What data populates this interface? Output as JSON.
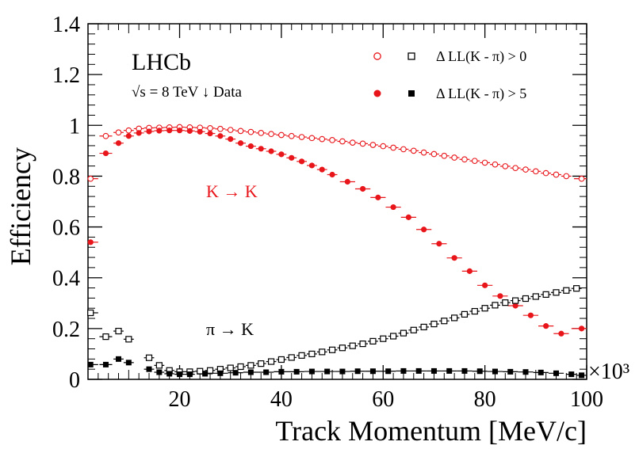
{
  "chart_data": {
    "type": "scatter",
    "ylabel": "Efficiency",
    "xlabel": "Track Momentum [MeV/c]",
    "x_multiplier": "×10³",
    "xlim": [
      2000,
      100000
    ],
    "ylim": [
      0,
      1.4
    ],
    "x_ticks": [
      20000,
      40000,
      60000,
      80000,
      100000
    ],
    "x_tick_labels": [
      "20",
      "40",
      "60",
      "80",
      "100"
    ],
    "y_ticks": [
      0,
      0.2,
      0.4,
      0.6,
      0.8,
      1.0,
      1.2,
      1.4
    ],
    "y_tick_labels": [
      "0",
      "0.2",
      "0.4",
      "0.6",
      "0.8",
      "1",
      "1.2",
      "1.4"
    ],
    "experiment_label": "LHCb",
    "energy_label": "√s = 8 TeV ↓ Data",
    "annotations": [
      {
        "text": "K → K",
        "color": "#e8161b"
      },
      {
        "text": "π → K",
        "color": "#000000"
      }
    ],
    "legend": [
      {
        "label": "Δ LL(K - π) > 0",
        "marker": "open",
        "colors": [
          "#e8161b",
          "#000000"
        ]
      },
      {
        "label": "Δ LL(K - π) > 5",
        "marker": "filled",
        "colors": [
          "#e8161b",
          "#000000"
        ]
      }
    ],
    "series": [
      {
        "name": "K→K, ΔLL(K-π) > 0",
        "color": "#e8161b",
        "marker": "open-circle",
        "x": [
          2500,
          5500,
          8000,
          10000,
          12000,
          14000,
          16000,
          18000,
          20000,
          22000,
          24000,
          26000,
          28000,
          30000,
          32000,
          34000,
          36000,
          38000,
          40000,
          42000,
          44000,
          46000,
          48000,
          50000,
          52000,
          54000,
          56000,
          58000,
          60000,
          62000,
          64000,
          66000,
          68000,
          70000,
          72000,
          74000,
          76000,
          78000,
          80000,
          82000,
          84000,
          86000,
          88000,
          90000,
          92000,
          94000,
          96000,
          99000
        ],
        "y": [
          0.79,
          0.958,
          0.972,
          0.98,
          0.987,
          0.99,
          0.991,
          0.992,
          0.993,
          0.992,
          0.991,
          0.989,
          0.986,
          0.982,
          0.978,
          0.974,
          0.97,
          0.966,
          0.962,
          0.958,
          0.954,
          0.95,
          0.946,
          0.942,
          0.937,
          0.932,
          0.928,
          0.923,
          0.918,
          0.912,
          0.906,
          0.9,
          0.893,
          0.887,
          0.88,
          0.873,
          0.866,
          0.86,
          0.853,
          0.846,
          0.839,
          0.832,
          0.826,
          0.819,
          0.812,
          0.806,
          0.8,
          0.79
        ]
      },
      {
        "name": "K→K, ΔLL(K-π) > 5",
        "color": "#e8161b",
        "marker": "filled-circle",
        "x": [
          2500,
          5500,
          8000,
          10000,
          12000,
          14000,
          16000,
          18000,
          20000,
          22000,
          24000,
          26000,
          28000,
          30000,
          32000,
          34000,
          36000,
          38000,
          40000,
          42000,
          44000,
          46000,
          48000,
          50000,
          53000,
          56000,
          59000,
          62000,
          65000,
          68000,
          71000,
          74000,
          77000,
          80000,
          83000,
          86000,
          89000,
          92000,
          95000,
          99000
        ],
        "y": [
          0.54,
          0.89,
          0.93,
          0.958,
          0.97,
          0.976,
          0.979,
          0.98,
          0.98,
          0.978,
          0.975,
          0.968,
          0.958,
          0.946,
          0.93,
          0.918,
          0.908,
          0.898,
          0.886,
          0.872,
          0.858,
          0.842,
          0.826,
          0.806,
          0.778,
          0.75,
          0.716,
          0.678,
          0.638,
          0.59,
          0.534,
          0.478,
          0.426,
          0.37,
          0.328,
          0.29,
          0.252,
          0.21,
          0.18,
          0.2
        ]
      },
      {
        "name": "π→K, ΔLL(K-π) > 0",
        "color": "#000000",
        "marker": "open-square",
        "x": [
          2500,
          5500,
          8000,
          10000,
          14000,
          16000,
          18000,
          20000,
          22000,
          24000,
          26000,
          28000,
          30000,
          32000,
          34000,
          36000,
          38000,
          40000,
          42000,
          44000,
          46000,
          48000,
          50000,
          52000,
          54000,
          56000,
          58000,
          60000,
          62000,
          64000,
          66000,
          68000,
          70000,
          72000,
          74000,
          76000,
          78000,
          80000,
          82000,
          84000,
          86000,
          88000,
          90000,
          92000,
          94000,
          96000,
          98000
        ],
        "y": [
          0.262,
          0.168,
          0.19,
          0.158,
          0.085,
          0.055,
          0.035,
          0.03,
          0.03,
          0.032,
          0.035,
          0.04,
          0.045,
          0.05,
          0.055,
          0.062,
          0.07,
          0.078,
          0.086,
          0.094,
          0.1,
          0.108,
          0.116,
          0.124,
          0.132,
          0.14,
          0.15,
          0.16,
          0.17,
          0.182,
          0.194,
          0.206,
          0.218,
          0.23,
          0.242,
          0.256,
          0.268,
          0.28,
          0.292,
          0.302,
          0.31,
          0.318,
          0.326,
          0.334,
          0.342,
          0.35,
          0.358
        ]
      },
      {
        "name": "π→K, ΔLL(K-π) > 5",
        "color": "#000000",
        "marker": "filled-square",
        "x": [
          2500,
          5500,
          8000,
          10000,
          14000,
          16000,
          18000,
          20000,
          22000,
          25000,
          28000,
          31000,
          34000,
          37000,
          40000,
          43000,
          46000,
          49000,
          52000,
          55000,
          58000,
          61000,
          64000,
          67000,
          70000,
          73000,
          76000,
          79000,
          82000,
          85000,
          88000,
          91000,
          94000,
          97000,
          99000
        ],
        "y": [
          0.058,
          0.058,
          0.08,
          0.066,
          0.04,
          0.028,
          0.022,
          0.02,
          0.02,
          0.022,
          0.024,
          0.026,
          0.028,
          0.028,
          0.03,
          0.03,
          0.031,
          0.031,
          0.031,
          0.032,
          0.032,
          0.032,
          0.033,
          0.033,
          0.033,
          0.033,
          0.033,
          0.032,
          0.031,
          0.03,
          0.029,
          0.027,
          0.024,
          0.02,
          0.016
        ]
      }
    ]
  }
}
